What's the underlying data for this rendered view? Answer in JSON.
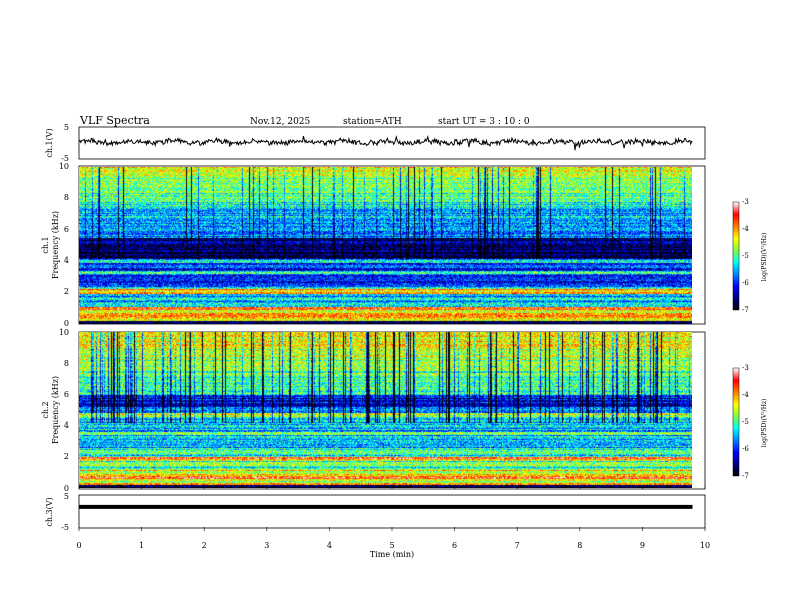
{
  "header": {
    "title": "VLF  Spectra",
    "date": "Nov.12, 2025",
    "station": "station=ATH",
    "start": "start  UT  =    3   : 10 : 0"
  },
  "chart_data": [
    {
      "type": "line",
      "name": "ch1-voltage",
      "ylabel": "ch.1(V)",
      "ylim": [
        -5,
        5
      ],
      "yticks": [
        "5",
        "-5"
      ],
      "xlim": [
        0,
        10
      ],
      "x_end": 9.8,
      "trace_mean": 0.3,
      "trace_noise": 0.7
    },
    {
      "type": "heatmap",
      "name": "ch1-spectrogram",
      "ylabel_lines": [
        "ch.1",
        "Frequency  (kHz)"
      ],
      "ylim": [
        0,
        10
      ],
      "yticks": [
        "0",
        "2",
        "4",
        "6",
        "8",
        "10"
      ],
      "xlim": [
        0,
        10
      ],
      "x_end": 9.8,
      "colorbar": {
        "label": "log(PSD)(V²/Hz)",
        "range": [
          -7,
          -3
        ],
        "ticks": [
          "-3",
          "-4",
          "-5",
          "-6",
          "-7"
        ]
      }
    },
    {
      "type": "heatmap",
      "name": "ch2-spectrogram",
      "ylabel_lines": [
        "ch.2",
        "Frequency  (kHz)"
      ],
      "ylim": [
        0,
        10
      ],
      "yticks": [
        "0",
        "2",
        "4",
        "6",
        "8",
        "10"
      ],
      "xlim": [
        0,
        10
      ],
      "x_end": 9.8,
      "colorbar": {
        "label": "log(PSD)(V²/Hz)",
        "range": [
          -7,
          -3
        ],
        "ticks": [
          "-3",
          "-4",
          "-5",
          "-6",
          "-7"
        ]
      }
    },
    {
      "type": "line",
      "name": "ch3-voltage",
      "ylabel": "ch.3(V)",
      "ylim": [
        -5,
        5
      ],
      "yticks": [
        "5",
        "-5"
      ],
      "xlim": [
        0,
        10
      ],
      "x_end": 9.8,
      "trace_mean": 1.4,
      "trace_noise": 0.0
    }
  ],
  "xaxis": {
    "label": "Time  (min)",
    "ticks": [
      "0",
      "1",
      "2",
      "3",
      "4",
      "5",
      "6",
      "7",
      "8",
      "9",
      "10"
    ]
  },
  "colors": {
    "trace": "#000000",
    "colormap": [
      "#000000",
      "#00007f",
      "#0000ff",
      "#0080ff",
      "#00ffff",
      "#80ff40",
      "#ffff00",
      "#ff8000",
      "#ff0000",
      "#ffffff"
    ]
  }
}
